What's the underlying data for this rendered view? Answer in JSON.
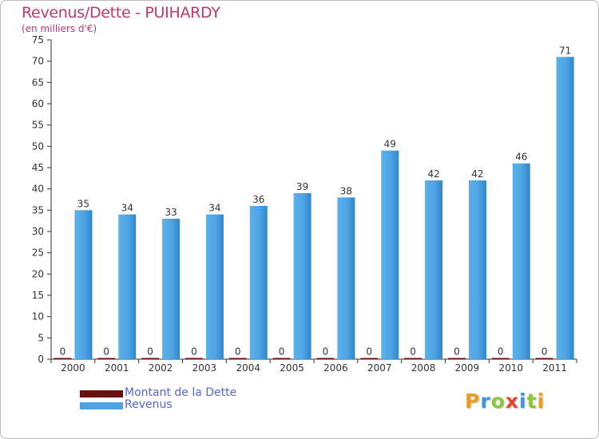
{
  "chart_data": {
    "type": "bar",
    "title": "Revenus/Dette - PUIHARDY",
    "subtitle": "(en milliers d'€)",
    "categories": [
      "2000",
      "2001",
      "2002",
      "2003",
      "2004",
      "2005",
      "2006",
      "2007",
      "2008",
      "2009",
      "2010",
      "2011"
    ],
    "series": [
      {
        "name": "Montant de la Dette",
        "color": "#6b0f0f",
        "values": [
          0,
          0,
          0,
          0,
          0,
          0,
          0,
          0,
          0,
          0,
          0,
          0
        ]
      },
      {
        "name": "Revenus",
        "color": "#4fa3e3",
        "values": [
          35,
          34,
          33,
          34,
          36,
          39,
          38,
          49,
          42,
          42,
          46,
          71
        ]
      }
    ],
    "ylim": [
      0,
      75
    ],
    "yticks": [
      0,
      5,
      10,
      15,
      20,
      25,
      30,
      35,
      40,
      45,
      50,
      55,
      60,
      65,
      70,
      75
    ],
    "grid": false,
    "legend": "bottom-left"
  },
  "logo": {
    "letters": [
      "P",
      "r",
      "o",
      "x",
      "i",
      "t",
      "i"
    ],
    "colors": [
      "#f29a1f",
      "#3a9ad9",
      "#8cc63f",
      "#e8452c",
      "#3a9ad9",
      "#8cc63f",
      "#f29a1f"
    ]
  }
}
